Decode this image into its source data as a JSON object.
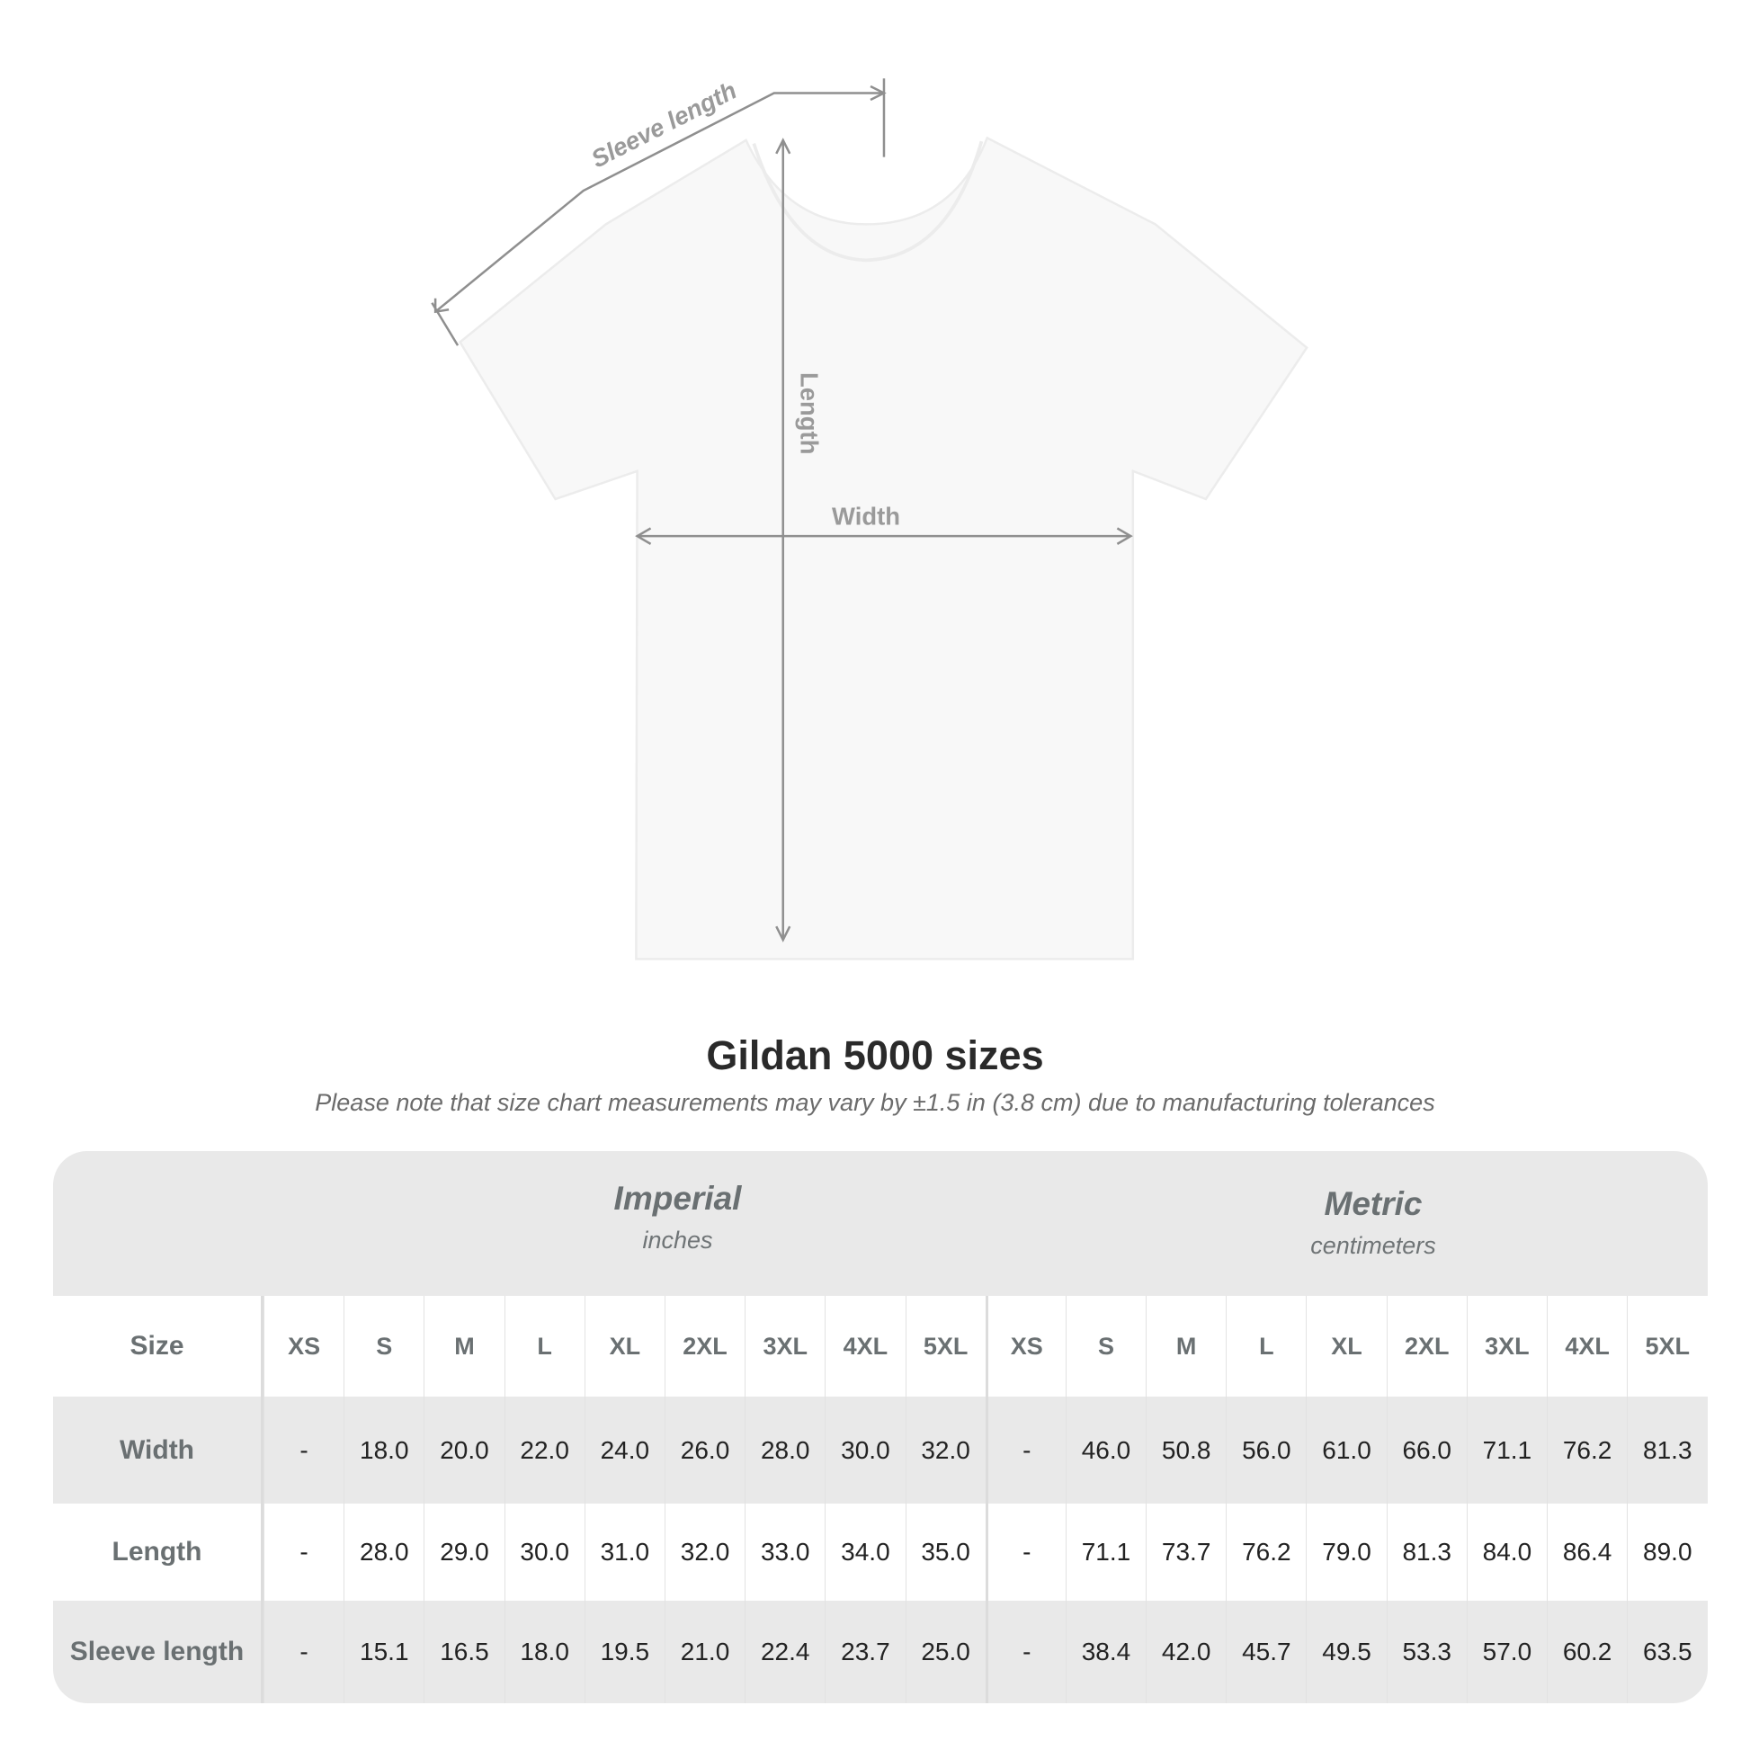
{
  "diagram": {
    "labels": {
      "sleeve": "Sleeve length",
      "length": "Length",
      "width": "Width"
    }
  },
  "title": "Gildan 5000 sizes",
  "note": "Please note that size chart measurements may vary by ±1.5 in (3.8 cm) due to manufacturing tolerances",
  "table": {
    "imperial": {
      "title": "Imperial",
      "unit": "inches"
    },
    "metric": {
      "title": "Metric",
      "unit": "centimeters"
    },
    "size_label": "Size",
    "sizes": [
      "XS",
      "S",
      "M",
      "L",
      "XL",
      "2XL",
      "3XL",
      "4XL",
      "5XL"
    ],
    "rows": [
      {
        "label": "Width",
        "imperial": [
          "-",
          "18.0",
          "20.0",
          "22.0",
          "24.0",
          "26.0",
          "28.0",
          "30.0",
          "32.0"
        ],
        "metric": [
          "-",
          "46.0",
          "50.8",
          "56.0",
          "61.0",
          "66.0",
          "71.1",
          "76.2",
          "81.3"
        ]
      },
      {
        "label": "Length",
        "imperial": [
          "-",
          "28.0",
          "29.0",
          "30.0",
          "31.0",
          "32.0",
          "33.0",
          "34.0",
          "35.0"
        ],
        "metric": [
          "-",
          "71.1",
          "73.7",
          "76.2",
          "79.0",
          "81.3",
          "84.0",
          "86.4",
          "89.0"
        ]
      },
      {
        "label": "Sleeve length",
        "imperial": [
          "-",
          "15.1",
          "16.5",
          "18.0",
          "19.5",
          "21.0",
          "22.4",
          "23.7",
          "25.0"
        ],
        "metric": [
          "-",
          "38.4",
          "42.0",
          "45.7",
          "49.5",
          "53.3",
          "57.0",
          "60.2",
          "63.5"
        ]
      }
    ]
  },
  "colors": {
    "band": "#e9e9e9",
    "header_text": "#6a7072",
    "arrow": "#8f8f8f"
  }
}
